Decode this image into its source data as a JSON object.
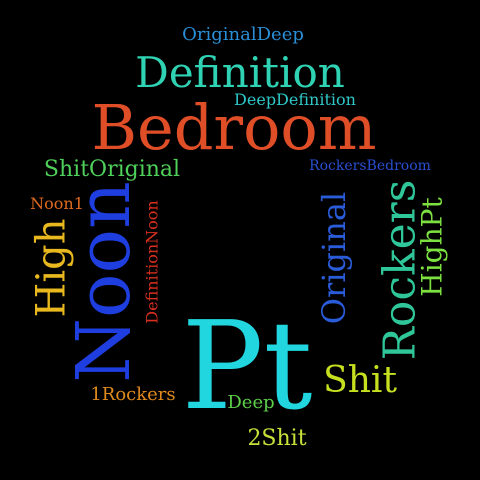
{
  "words": [
    {
      "text": "OriginalDeep",
      "color": "#2a8fd6",
      "orientation": "horizontal"
    },
    {
      "text": "Definition",
      "color": "#2fd3b4",
      "orientation": "horizontal"
    },
    {
      "text": "DeepDefinition",
      "color": "#2fc7c8",
      "orientation": "horizontal"
    },
    {
      "text": "Bedroom",
      "color": "#e04e28",
      "orientation": "horizontal"
    },
    {
      "text": "ShitOriginal",
      "color": "#4fd05a",
      "orientation": "horizontal"
    },
    {
      "text": "RockersBedroom",
      "color": "#2a4fd0",
      "orientation": "horizontal"
    },
    {
      "text": "Noon1",
      "color": "#e06a1e",
      "orientation": "horizontal"
    },
    {
      "text": "High",
      "color": "#e8b81e",
      "orientation": "vertical"
    },
    {
      "text": "Noon",
      "color": "#1f3ee0",
      "orientation": "vertical"
    },
    {
      "text": "DefinitionNoon",
      "color": "#d8301e",
      "orientation": "vertical"
    },
    {
      "text": "Original",
      "color": "#2a5bd8",
      "orientation": "vertical"
    },
    {
      "text": "Rockers",
      "color": "#2fc79a",
      "orientation": "vertical"
    },
    {
      "text": "HighPt",
      "color": "#7ce040",
      "orientation": "vertical"
    },
    {
      "text": "Pt",
      "color": "#22d6e0",
      "orientation": "horizontal"
    },
    {
      "text": "Shit",
      "color": "#c6e020",
      "orientation": "horizontal"
    },
    {
      "text": "1Rockers",
      "color": "#e08a1e",
      "orientation": "horizontal"
    },
    {
      "text": "Deep",
      "color": "#5ed04a",
      "orientation": "horizontal"
    },
    {
      "text": "2Shit",
      "color": "#c8e03a",
      "orientation": "horizontal"
    }
  ]
}
